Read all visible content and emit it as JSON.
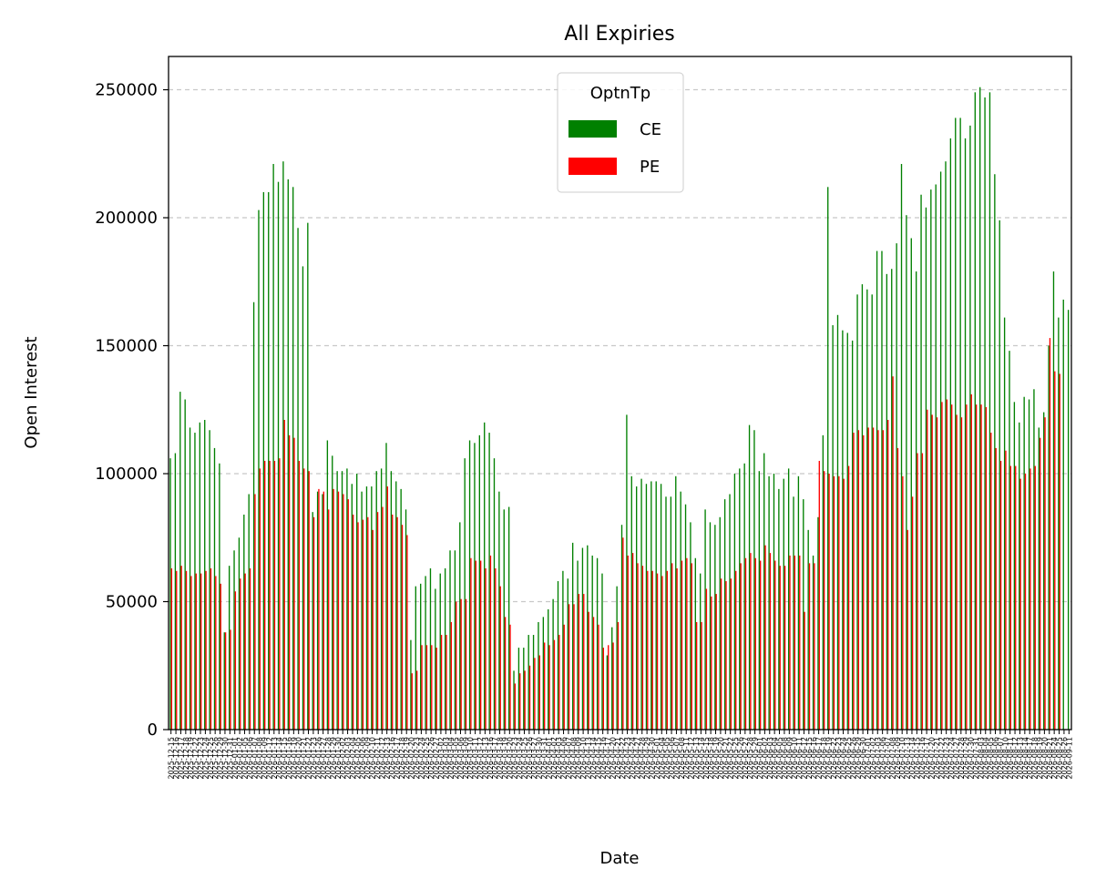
{
  "chart_data": {
    "type": "bar",
    "title": "All Expiries",
    "xlabel": "Date",
    "ylabel": "Open Interest",
    "ylim": [
      0,
      263000
    ],
    "yticks": [
      0,
      50000,
      100000,
      150000,
      200000,
      250000
    ],
    "grid": "y-dashed",
    "legend": {
      "title": "OptnTp",
      "placement": "top-center"
    },
    "colors": {
      "CE": "#008000",
      "PE": "#ff0000"
    },
    "first_date": "2025-12-15",
    "last_date": "2026-09-11",
    "series": [
      {
        "name": "CE",
        "values": [
          106000,
          108000,
          132000,
          129000,
          118000,
          116000,
          120000,
          121000,
          117000,
          110000,
          104000,
          38000,
          64000,
          70000,
          75000,
          84000,
          92000,
          167000,
          203000,
          210000,
          210000,
          221000,
          214000,
          222000,
          215000,
          212000,
          196000,
          181000,
          198000,
          85000,
          93000,
          92000,
          113000,
          107000,
          101000,
          101000,
          102000,
          96000,
          100000,
          93000,
          95000,
          95000,
          101000,
          102000,
          112000,
          101000,
          97000,
          94000,
          86000,
          35000,
          56000,
          57000,
          60000,
          63000,
          55000,
          61000,
          63000,
          70000,
          70000,
          81000,
          106000,
          113000,
          112000,
          115000,
          120000,
          116000,
          106000,
          93000,
          86000,
          87000,
          23000,
          32000,
          32000,
          37000,
          37000,
          42000,
          44000,
          47000,
          51000,
          58000,
          62000,
          59000,
          73000,
          66000,
          71000,
          72000,
          68000,
          67000,
          61000,
          29000,
          40000,
          56000,
          80000,
          123000,
          99000,
          95000,
          98000,
          96000,
          97000,
          97000,
          96000,
          91000,
          91000,
          99000,
          93000,
          88000,
          81000,
          67000,
          61000,
          86000,
          81000,
          80000,
          83000,
          90000,
          92000,
          100000,
          102000,
          104000,
          119000,
          117000,
          101000,
          108000,
          99000,
          100000,
          94000,
          98000,
          102000,
          91000,
          99000,
          90000,
          78000,
          68000,
          83000,
          115000,
          212000,
          158000,
          162000,
          156000,
          155000,
          152000,
          170000,
          174000,
          172000,
          170000,
          187000,
          187000,
          178000,
          180000,
          190000,
          221000,
          201000,
          192000,
          179000,
          209000,
          204000,
          211000,
          213000,
          218000,
          222000,
          231000,
          239000,
          239000,
          231000,
          236000,
          249000,
          251000,
          247000,
          249000,
          217000,
          199000,
          161000,
          148000,
          128000,
          120000,
          130000,
          129000,
          133000,
          118000,
          124000,
          150000,
          179000,
          161000,
          168000,
          164000
        ]
      },
      {
        "name": "PE",
        "values": [
          63000,
          62000,
          64000,
          62000,
          60000,
          61000,
          61000,
          62000,
          63000,
          60000,
          57000,
          38000,
          39000,
          54000,
          59000,
          61000,
          63000,
          92000,
          102000,
          105000,
          105000,
          105000,
          106000,
          121000,
          115000,
          114000,
          105000,
          102000,
          101000,
          83000,
          94000,
          93000,
          86000,
          94000,
          93000,
          92000,
          90000,
          84000,
          81000,
          82000,
          83000,
          78000,
          85000,
          87000,
          95000,
          84000,
          83000,
          80000,
          76000,
          22000,
          23000,
          33000,
          33000,
          33000,
          32000,
          37000,
          37000,
          42000,
          50000,
          51000,
          51000,
          67000,
          66000,
          66000,
          63000,
          68000,
          63000,
          56000,
          44000,
          41000,
          18000,
          22000,
          23000,
          25000,
          28000,
          29000,
          34000,
          33000,
          35000,
          37000,
          41000,
          49000,
          49000,
          53000,
          53000,
          46000,
          44000,
          41000,
          32000,
          33000,
          34000,
          42000,
          75000,
          68000,
          69000,
          65000,
          64000,
          62000,
          62000,
          61000,
          60000,
          62000,
          65000,
          63000,
          66000,
          67000,
          65000,
          42000,
          42000,
          55000,
          52000,
          53000,
          59000,
          58000,
          59000,
          62000,
          65000,
          67000,
          69000,
          67000,
          66000,
          72000,
          69000,
          66000,
          64000,
          64000,
          68000,
          68000,
          68000,
          46000,
          65000,
          65000,
          105000,
          101000,
          100000,
          99000,
          99000,
          98000,
          103000,
          116000,
          117000,
          115000,
          118000,
          118000,
          117000,
          117000,
          121000,
          138000,
          110000,
          99000,
          78000,
          91000,
          108000,
          108000,
          125000,
          123000,
          122000,
          128000,
          129000,
          127000,
          123000,
          122000,
          127000,
          131000,
          127000,
          127000,
          126000,
          116000,
          110000,
          105000,
          109000,
          103000,
          103000,
          98000,
          100000,
          102000,
          103000,
          114000,
          122000,
          153000,
          140000,
          139000
        ]
      }
    ]
  }
}
